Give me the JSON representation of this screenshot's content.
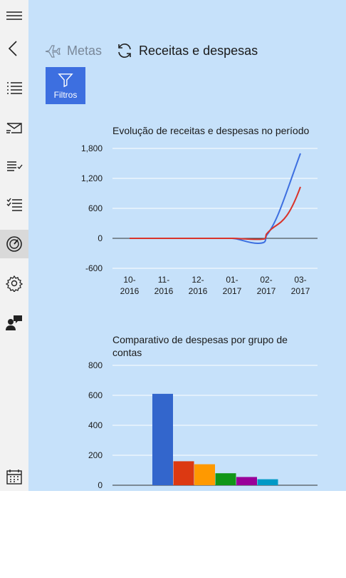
{
  "sidebar": {
    "items": [
      {
        "icon": "hamburger-icon"
      },
      {
        "icon": "back-icon"
      },
      {
        "icon": "list-icon"
      },
      {
        "icon": "mail-icon"
      },
      {
        "icon": "checklist-icon"
      },
      {
        "icon": "tasks-icon"
      },
      {
        "icon": "dashboard-icon",
        "active": true
      },
      {
        "icon": "gear-icon"
      },
      {
        "icon": "user-chat-icon"
      },
      {
        "icon": "calendar-icon"
      }
    ]
  },
  "commandbar": {
    "metas_label": "Metas",
    "receitas_label": "Receitas e despesas"
  },
  "filter": {
    "label": "Filtros"
  },
  "colors": {
    "background": "#c6e1fa",
    "accent": "#3d6fe0",
    "receitas": "#3d6fe0",
    "despesas": "#d9342b"
  },
  "chart_data": [
    {
      "type": "line",
      "title": "Evolução de receitas e despesas no período",
      "categories": [
        "10-\n2016",
        "11-\n2016",
        "12-\n2016",
        "01-\n2017",
        "02-\n2017",
        "03-\n2017"
      ],
      "category_lines": [
        [
          "10-",
          "2016"
        ],
        [
          "11-",
          "2016"
        ],
        [
          "12-",
          "2016"
        ],
        [
          "01-",
          "2017"
        ],
        [
          "02-",
          "2017"
        ],
        [
          "03-",
          "2017"
        ]
      ],
      "yticks": [
        "1,800",
        "1,200",
        "600",
        "0",
        "-600"
      ],
      "ytick_values": [
        1800,
        1200,
        600,
        0,
        -600
      ],
      "ylim": [
        -600,
        1800
      ],
      "series": [
        {
          "color": "#3d6fe0",
          "values": [
            0,
            0,
            0,
            0,
            50,
            1700
          ]
        },
        {
          "color": "#d9342b",
          "values": [
            0,
            0,
            0,
            0,
            80,
            1030
          ]
        }
      ],
      "grid": true
    },
    {
      "type": "bar",
      "title_lines": [
        "Comparativo de despesas por grupo de",
        "contas"
      ],
      "yticks": [
        "800",
        "600",
        "400",
        "200",
        "0"
      ],
      "ytick_values": [
        800,
        600,
        400,
        200,
        0
      ],
      "ylim": [
        0,
        800
      ],
      "values": [
        610,
        160,
        140,
        80,
        55,
        40
      ],
      "colors": [
        "#3366cc",
        "#dc3912",
        "#ff9900",
        "#109618",
        "#990099",
        "#0099c6"
      ],
      "grid": true
    }
  ]
}
